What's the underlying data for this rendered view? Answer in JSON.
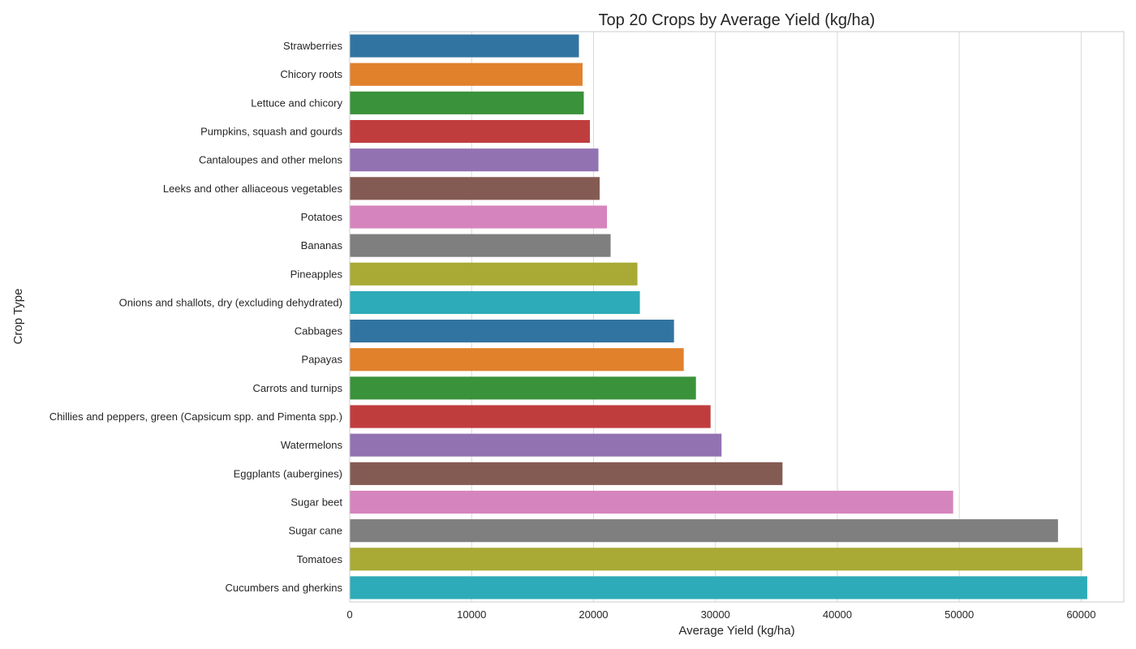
{
  "chart_data": {
    "type": "bar",
    "orientation": "horizontal",
    "title": "Top 20 Crops by Average Yield (kg/ha)",
    "xlabel": "Average Yield (kg/ha)",
    "ylabel": "Crop Type",
    "xlim": [
      0,
      63500
    ],
    "xticks": [
      0,
      10000,
      20000,
      30000,
      40000,
      50000,
      60000
    ],
    "grid": "vertical",
    "categories": [
      "Strawberries",
      "Chicory roots",
      "Lettuce and chicory",
      "Pumpkins, squash and gourds",
      "Cantaloupes and other melons",
      "Leeks and other alliaceous vegetables",
      "Potatoes",
      "Bananas",
      "Pineapples",
      "Onions and shallots, dry (excluding dehydrated)",
      "Cabbages",
      "Papayas",
      "Carrots and turnips",
      "Chillies and peppers, green (Capsicum spp. and Pimenta spp.)",
      "Watermelons",
      "Eggplants (aubergines)",
      "Sugar beet",
      "Sugar cane",
      "Tomatoes",
      "Cucumbers and gherkins"
    ],
    "values": [
      18800,
      19100,
      19200,
      19700,
      20400,
      20500,
      21100,
      21400,
      23600,
      23800,
      26600,
      27400,
      28400,
      29600,
      30500,
      35500,
      49500,
      58100,
      60100,
      60500
    ],
    "colors": [
      "#3274a1",
      "#e1812c",
      "#3a923a",
      "#c03d3e",
      "#9372b2",
      "#845b53",
      "#d684bd",
      "#7f7f7f",
      "#a9aa35",
      "#2eabb8",
      "#3274a1",
      "#e1812c",
      "#3a923a",
      "#c03d3e",
      "#9372b2",
      "#845b53",
      "#d684bd",
      "#7f7f7f",
      "#a9aa35",
      "#2eabb8"
    ]
  }
}
